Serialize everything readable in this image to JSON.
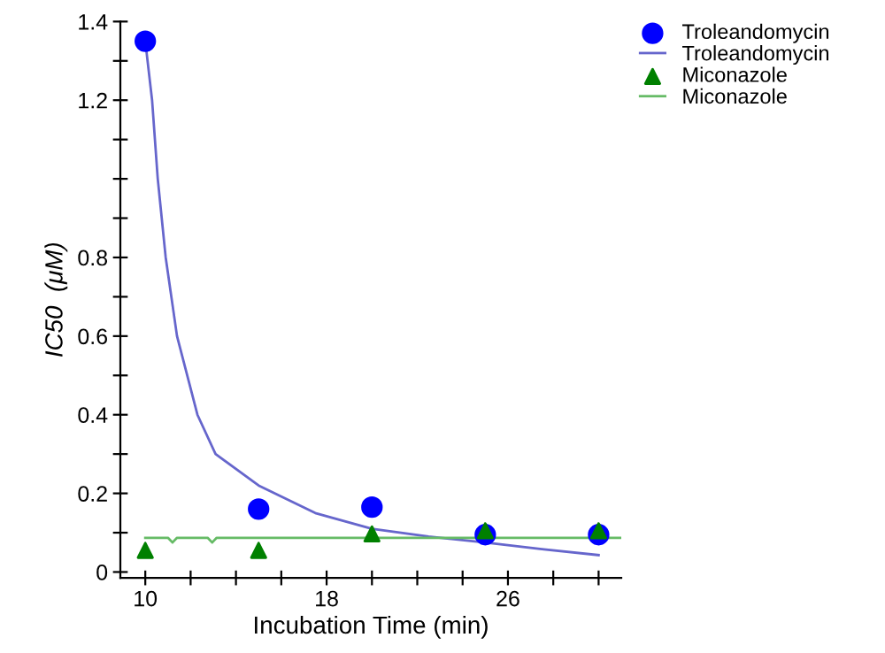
{
  "chart_data": {
    "type": "scatter",
    "xlabel": "Incubation Time (min)",
    "ylabel": "IC50  (μM)",
    "xlim": [
      8.9,
      31
    ],
    "xticks": [
      {
        "value": 10,
        "label": "10"
      },
      {
        "value": 12,
        "label": null
      },
      {
        "value": 14,
        "label": null
      },
      {
        "value": 16,
        "label": null
      },
      {
        "value": 18,
        "label": "18"
      },
      {
        "value": 20,
        "label": null
      },
      {
        "value": 22,
        "label": null
      },
      {
        "value": 24,
        "label": null
      },
      {
        "value": 26,
        "label": "26"
      },
      {
        "value": 28,
        "label": null
      },
      {
        "value": 30,
        "label": null
      }
    ],
    "ylim": [
      -0.015,
      1.4
    ],
    "yticks": [
      0,
      {
        "value": 0.1,
        "label": null
      },
      0.2,
      {
        "value": 0.3,
        "label": null
      },
      0.4,
      {
        "value": 0.5,
        "label": null
      },
      0.6,
      {
        "value": 0.7,
        "label": null
      },
      0.8,
      {
        "value": 0.9,
        "label": null
      },
      {
        "value": 1,
        "label": null
      },
      {
        "value": 1.1,
        "label": null
      },
      1.2,
      {
        "value": 1.3,
        "label": null
      },
      1.4
    ],
    "grid": false,
    "legend": "top right",
    "series": [
      {
        "name": "Troleandomycin",
        "marker": "circle",
        "color": "#0000ff",
        "x": [
          10,
          15,
          20,
          25,
          30
        ],
        "values": [
          1.35,
          0.16,
          0.165,
          0.095,
          0.095
        ]
      },
      {
        "name": "Troleandomycin",
        "type": "line",
        "color": "#6666cc",
        "x": [
          10,
          10.3,
          10.55,
          10.9,
          11.4,
          12.3,
          13.1,
          15,
          17.5,
          20,
          22.5,
          25,
          27.5,
          30
        ],
        "values": [
          1.35,
          1.2,
          1.0,
          0.8,
          0.6,
          0.4,
          0.3,
          0.22,
          0.15,
          0.11,
          0.09,
          0.075,
          0.058,
          0.043
        ]
      },
      {
        "name": "Miconazole",
        "marker": "triangle",
        "color": "#008000",
        "x": [
          10,
          15,
          20,
          25,
          30
        ],
        "values": [
          0.055,
          0.055,
          0.097,
          0.105,
          0.105
        ]
      },
      {
        "name": "Miconazole",
        "type": "line",
        "color": "#66bb66",
        "x": [
          10,
          11.0,
          11.2,
          11.4,
          12.75,
          12.95,
          13.15,
          31
        ],
        "values": [
          0.087,
          0.087,
          0.075,
          0.087,
          0.087,
          0.075,
          0.087,
          0.087
        ]
      }
    ]
  }
}
